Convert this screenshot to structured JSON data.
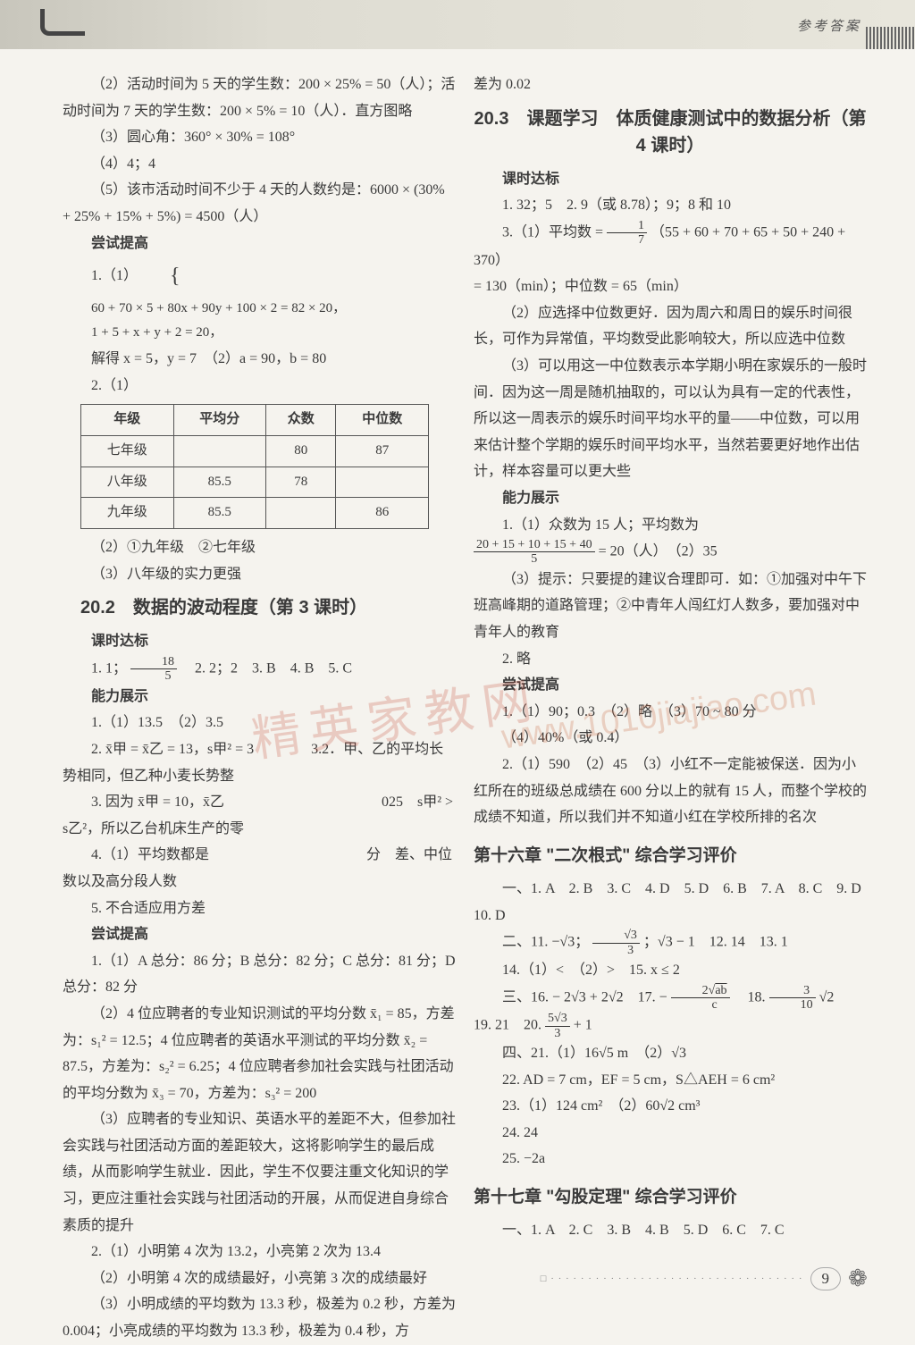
{
  "header": {
    "label": "参考答案"
  },
  "left": {
    "p1": "（2）活动时间为 5 天的学生数：200 × 25% = 50（人）；活动时间为 7 天的学生数：200 × 5% = 10（人）．直方图略",
    "p2": "（3）圆心角：360° × 30% = 108°",
    "p3": "（4）4；4",
    "p4": "（5）该市活动时间不少于 4 天的人数约是：6000 × (30% + 25% + 15% + 5%) = 4500（人）",
    "h_try": "尝试提高",
    "p5a": "1.（1）",
    "p5b1": "60 + 70 × 5 + 80x + 90y + 100 × 2 = 82 × 20，",
    "p5b2": "1 + 5 + x + y + 2 = 20，",
    "p6": "解得 x = 5，y = 7　（2）a = 90，b = 80",
    "p7": "2.（1）",
    "table": {
      "headers": [
        "年级",
        "平均分",
        "众数",
        "中位数"
      ],
      "rows": [
        [
          "七年级",
          "",
          "80",
          "87"
        ],
        [
          "八年级",
          "85.5",
          "78",
          ""
        ],
        [
          "九年级",
          "85.5",
          "",
          "86"
        ]
      ]
    },
    "p8": "（2）①九年级　②七年级",
    "p9": "（3）八年级的实力更强",
    "sec202": "20.2　数据的波动程度（第 3 课时）",
    "h_kd": "课时达标",
    "p10a": "1. 1；",
    "p10b": "　2. 2；2　3. B　4. B　5. C",
    "h_nl": "能力展示",
    "p11": "1.（1）13.5　（2）3.5",
    "p12": "2. x̄甲 = x̄乙 = 13，s甲² = 3　　　　3.2．甲、乙的平均长势相同，但乙种小麦长势整",
    "p13": "3. 因为 x̄甲 = 10，x̄乙　　　　　　　　　　　025　s甲² > s乙²，所以乙台机床生产的零",
    "p14": "4.（1）平均数都是　　　　　　　　　　　分　差、中位数以及高分段人数　　　　",
    "p15": "5. 不合适应用方差",
    "h_try2": "尝试提高",
    "p16": "1.（1）A 总分：86 分；B 总分：82 分；C 总分：81 分；D 总分：82 分",
    "p17": "（2）4 位应聘者的专业知识测试的平均分数 x̄₁ = 85，方差为：s₁² = 12.5；4 位应聘者的英语水平测试的平均分数 x̄₂ = 87.5，方差为：s₂² = 6.25；4 位应聘者参加社会实践与社团活动的平均分数为 x̄₃ = 70，方差为：s₃² = 200",
    "p18": "（3）应聘者的专业知识、英语水平的差距不大，但参加社会实践与社团活动方面的差距较大，这将影响学生的最后成绩，从而影响学生就业．因此，学生不仅要注重文化知识的学习，更应注重社会实践与社团活动的开展，从而促进自身综合素质的提升",
    "p19": "2.（1）小明第 4 次为 13.2，小亮第 2 次为 13.4",
    "p20": "（2）小明第 4 次的成绩最好，小亮第 3 次的成绩最好",
    "p21": "（3）小明成绩的平均数为 13.3 秒，极差为 0.2 秒，方差为 0.004；小亮成绩的平均数为 13.3 秒，极差为 0.4 秒，方"
  },
  "right": {
    "p0": "差为 0.02",
    "sec203": "20.3　课题学习　体质健康测试中的数据分析（第 4 课时）",
    "h_kd": "课时达标",
    "p1": "1. 32；5　2. 9（或 8.78）；9；8 和 10",
    "p2a": "3.（1）平均数 = ",
    "p2b": "（55 + 60 + 70 + 65 + 50 + 240 + 370）",
    "p2c": "= 130（min）；中位数 = 65（min）",
    "p3": "（2）应选择中位数更好．因为周六和周日的娱乐时间很长，可作为异常值，平均数受此影响较大，所以应选中位数",
    "p4": "（3）可以用这一中位数表示本学期小明在家娱乐的一般时间．因为这一周是随机抽取的，可以认为具有一定的代表性，所以这一周表示的娱乐时间平均水平的量——中位数，可以用来估计整个学期的娱乐时间平均水平，当然若要更好地作出估计，样本容量可以更大些",
    "h_nl": "能力展示",
    "p5": "1.（1）众数为 15 人；平均数为",
    "p5f": "= 20（人）　（2）35",
    "p6": "（3）提示：只要提的建议合理即可．如：①加强对中午下班高峰期的道路管理；②中青年人闯红灯人数多，要加强对中青年人的教育",
    "p7": "2. 略",
    "h_try": "尝试提高",
    "p8": "1.（1）90；0.3　（2）略　（3）70 ~ 80 分",
    "p9": "（4）40%（或 0.4）",
    "p10": "2.（1）590　（2）45　（3）小红不一定能被保送．因为小红所在的班级总成绩在 600 分以上的就有 15 人，而整个学校的成绩不知道，所以我们并不知道小红在学校所排的名次",
    "ch16": "第十六章 \"二次根式\" 综合学习评价",
    "p11": "一、1. A　2. B　3. C　4. D　5. D　6. B　7. A　8. C　9. D　10. D",
    "p12a": "二、11. −√3；",
    "p12b": "；√3 − 1　12. 14　13. 1",
    "p13": "14.（1）<　（2）>　15. x ≤ 2",
    "p14a": "三、16. − 2√3 + 2√2　17. − ",
    "p14b": "　18. ",
    "p14c": "√2",
    "p15a": "19. 21　20. ",
    "p15b": " + 1",
    "p16": "四、21.（1）16√5 m　（2）√3",
    "p17": "22. AD = 7 cm，EF = 5 cm，S△AEH = 6 cm²",
    "p18": "23.（1）124 cm²　（2）60√2 cm³",
    "p19": "24. 24",
    "p20": "25. −2a",
    "ch17": "第十七章 \"勾股定理\" 综合学习评价",
    "p21": "一、1. A　2. C　3. B　4. B　5. D　6. C　7. C"
  },
  "footer": {
    "page": "9"
  },
  "colors": {
    "text": "#3a3a3a",
    "bg": "#f5f3ee",
    "watermark": "rgba(200,80,60,0.25)"
  }
}
